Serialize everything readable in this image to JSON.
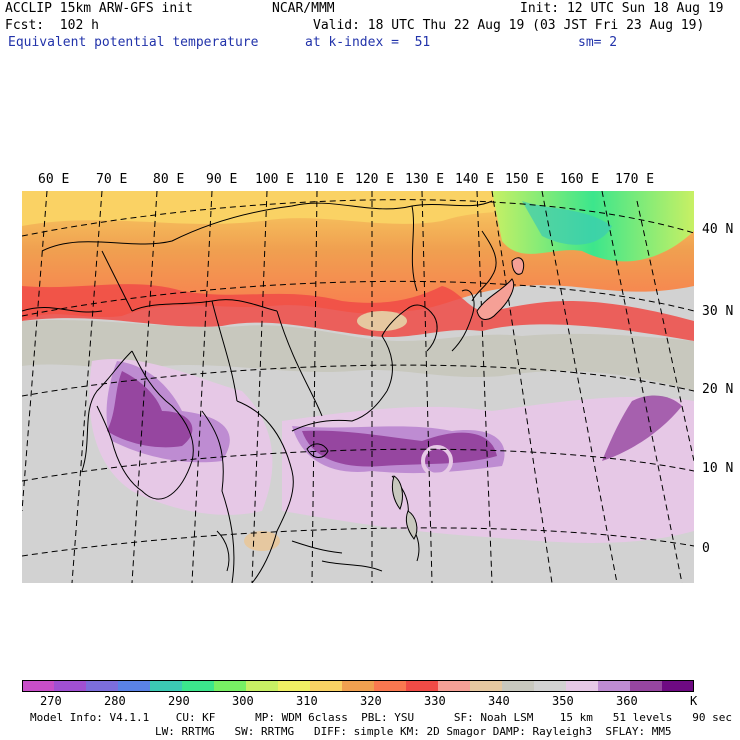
{
  "header": {
    "model": "ACCLIP 15km ARW-GFS init",
    "org": "NCAR/MMM",
    "init": "Init: 12 UTC Sun 18 Aug 19",
    "fcst": "Fcst:  102 h",
    "valid": "Valid: 18 UTC Thu 22 Aug 19 (03 JST Fri 23 Aug 19)",
    "field": "Equivalent potential temperature",
    "level": "at k-index =  51",
    "smooth": "sm= 2"
  },
  "map": {
    "lon_labels": [
      "60 E",
      "70 E",
      "80 E",
      "90 E",
      "100 E",
      "110 E",
      "120 E",
      "130 E",
      "140 E",
      "150 E",
      "160 E",
      "170 E"
    ],
    "lat_labels": [
      "40 N",
      "30 N",
      "20 N",
      "10 N",
      "0"
    ]
  },
  "colorbar": {
    "colors": [
      "#c84ec8",
      "#a050d2",
      "#7c6edc",
      "#5a82e6",
      "#3ccab4",
      "#3ce68c",
      "#78f064",
      "#c8f064",
      "#f0f064",
      "#fad264",
      "#f0a050",
      "#fa7850",
      "#f04b46",
      "#f5a096",
      "#e6c8a0",
      "#c8c8be",
      "#d2d2d2",
      "#e6c8e6",
      "#be8cd2",
      "#9646a0",
      "#6e0a82"
    ],
    "labels": [
      "270",
      "280",
      "290",
      "300",
      "310",
      "320",
      "330",
      "340",
      "350",
      "360"
    ],
    "unit": "K"
  },
  "footer": {
    "line1": "Model Info: V4.1.1    CU: KF      MP: WDM 6class  PBL: YSU      SF: Noah LSM    15 km   51 levels   90 sec",
    "line2": "LW: RRTMG   SW: RRTMG   DIFF: simple KM: 2D Smagor DAMP: Rayleigh3  SFLAY: MM5"
  }
}
